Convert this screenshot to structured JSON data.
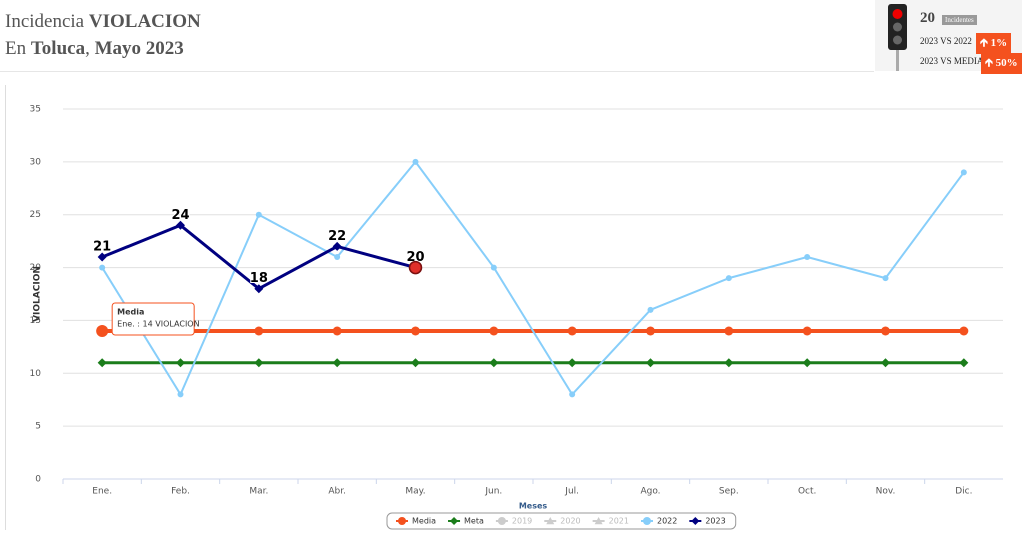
{
  "header": {
    "title": {
      "prefix": "Incidencia",
      "bold": "VIOLACION"
    },
    "subtitle": {
      "prefix": "En",
      "place": "Toluca",
      "separator": ",",
      "period": "Mayo 2023"
    }
  },
  "indicator": {
    "count": "20",
    "count_label": "Incidentes",
    "rows": [
      {
        "label": "2023 VS 2022",
        "change": "1%"
      },
      {
        "label": "2023 VS MEDIA",
        "change": "50%"
      }
    ]
  },
  "chart_data": {
    "type": "line",
    "categories": [
      "Ene.",
      "Feb.",
      "Mar.",
      "Abr.",
      "May.",
      "Jun.",
      "Jul.",
      "Ago.",
      "Sep.",
      "Oct.",
      "Nov.",
      "Dic."
    ],
    "x_label": "Meses",
    "y_label": "VIOLACION",
    "ylim": [
      0,
      35
    ],
    "yticks": [
      0,
      5,
      10,
      15,
      20,
      25,
      30,
      35
    ],
    "grid": true,
    "series": [
      {
        "name": "Media",
        "color": "#f4511e",
        "marker": "circle",
        "visible": true,
        "values": [
          14,
          14,
          14,
          14,
          14,
          14,
          14,
          14,
          14,
          14,
          14,
          14
        ]
      },
      {
        "name": "Meta",
        "color": "#1b7d1b",
        "marker": "diamond",
        "visible": true,
        "values": [
          11,
          11,
          11,
          11,
          11,
          11,
          11,
          11,
          11,
          11,
          11,
          11
        ]
      },
      {
        "name": "2019",
        "color": "#cccccc",
        "marker": "circle",
        "visible": false
      },
      {
        "name": "2020",
        "color": "#cccccc",
        "marker": "triangle",
        "visible": false
      },
      {
        "name": "2021",
        "color": "#cccccc",
        "marker": "triangle",
        "visible": false
      },
      {
        "name": "2022",
        "color": "#87cefa",
        "marker": "circle",
        "visible": true,
        "values": [
          20,
          8,
          25,
          21,
          30,
          20,
          8,
          16,
          19,
          21,
          19,
          29
        ]
      },
      {
        "name": "2023",
        "color": "#000080",
        "marker": "diamond",
        "visible": true,
        "data_labels": true,
        "values": [
          21,
          24,
          18,
          22,
          20,
          null,
          null,
          null,
          null,
          null,
          null,
          null
        ]
      }
    ],
    "tooltip": {
      "title": "Media",
      "text": "Ene. : 14 VIOLACION"
    }
  }
}
